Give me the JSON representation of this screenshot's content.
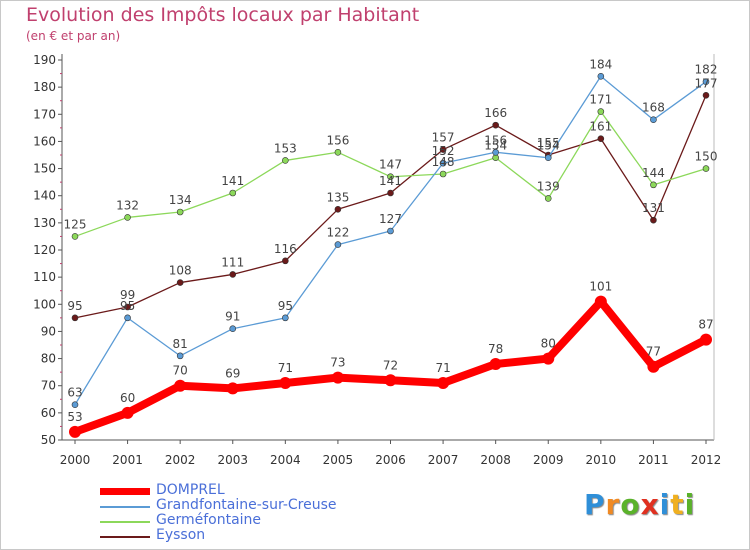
{
  "title": "Evolution des Impôts locaux par Habitant",
  "subtitle": "(en € et par an)",
  "brand": {
    "letters": [
      "P",
      "r",
      "o",
      "x",
      "i",
      "t",
      "i"
    ],
    "colors": [
      "#2f8fd8",
      "#f08a24",
      "#5ab22a",
      "#e03020",
      "#2f8fd8",
      "#f0b020",
      "#5ab22a"
    ]
  },
  "chart_data": {
    "type": "line",
    "x": [
      "2000",
      "2001",
      "2002",
      "2003",
      "2004",
      "2005",
      "2006",
      "2007",
      "2008",
      "2009",
      "2010",
      "2011",
      "2012"
    ],
    "ylim": [
      50,
      190
    ],
    "yticks": [
      50,
      60,
      70,
      80,
      90,
      100,
      110,
      120,
      130,
      140,
      150,
      160,
      170,
      180,
      190
    ],
    "grid": false,
    "legend": "bottom-left",
    "series": [
      {
        "name": "DOMPREL",
        "color": "#ff0000",
        "values": [
          53,
          60,
          70,
          69,
          71,
          73,
          72,
          71,
          78,
          80,
          101,
          77,
          87
        ]
      },
      {
        "name": "Grandfontaine-sur-Creuse",
        "color": "#5b9bd5",
        "values": [
          63,
          95,
          81,
          91,
          95,
          122,
          127,
          152,
          156,
          154,
          184,
          168,
          182
        ]
      },
      {
        "name": "Germéfontaine",
        "color": "#8cd85a",
        "values": [
          125,
          132,
          134,
          141,
          153,
          156,
          147,
          148,
          154,
          139,
          171,
          144,
          150
        ]
      },
      {
        "name": "Eysson",
        "color": "#6b1a1a",
        "values": [
          95,
          99,
          108,
          111,
          116,
          135,
          141,
          157,
          166,
          155,
          161,
          131,
          177
        ]
      }
    ]
  }
}
